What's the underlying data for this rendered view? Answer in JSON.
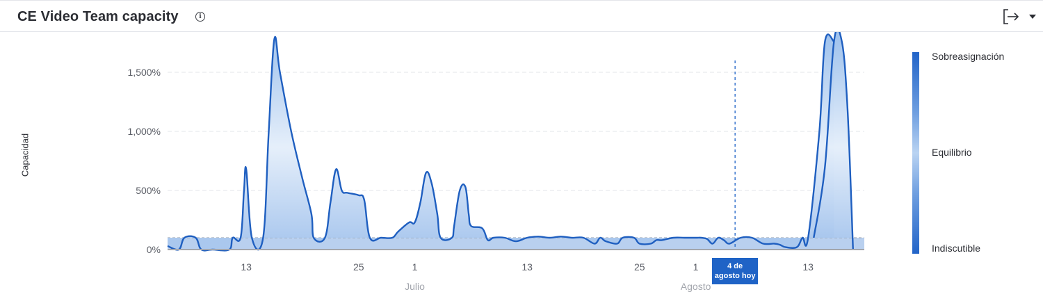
{
  "widget": {
    "title": "CE Video Team capacity",
    "info_icon": "info-circle-icon",
    "export_icon": "export-arrow-icon",
    "dropdown_icon": "caret-down-icon"
  },
  "chart_data": {
    "type": "area",
    "ylabel": "Capacidad",
    "yticks": [
      "0%",
      "500%",
      "1,000%",
      "1,500%"
    ],
    "ylim": [
      0,
      1800
    ],
    "xlim": [
      0,
      62
    ],
    "x_ticks": [
      {
        "x": 7,
        "label": "13"
      },
      {
        "x": 17,
        "label": "25"
      },
      {
        "x": 22,
        "label": "1"
      },
      {
        "x": 32,
        "label": "13"
      },
      {
        "x": 42,
        "label": "25"
      },
      {
        "x": 47,
        "label": "1"
      },
      {
        "x": 57,
        "label": "13"
      }
    ],
    "months": [
      {
        "x": 22,
        "label": "Julio"
      },
      {
        "x": 47,
        "label": "Agosto"
      }
    ],
    "today": {
      "x": 50.5,
      "label_line1": "4 de",
      "label_line2": "agosto hoy"
    },
    "baseline": 100,
    "series": [
      {
        "values": [
          [
            0,
            30
          ],
          [
            1,
            0
          ],
          [
            1.5,
            100
          ],
          [
            2.5,
            100
          ],
          [
            3,
            0
          ],
          [
            4,
            0
          ],
          [
            5.5,
            0
          ],
          [
            5.8,
            100
          ],
          [
            6.5,
            100
          ],
          [
            6.8,
            500
          ],
          [
            7,
            680
          ],
          [
            7.5,
            100
          ],
          [
            8.5,
            100
          ],
          [
            9,
            1000
          ],
          [
            9.5,
            1780
          ],
          [
            10,
            1500
          ],
          [
            11,
            1000
          ],
          [
            12,
            600
          ],
          [
            12.8,
            300
          ],
          [
            13,
            100
          ],
          [
            14,
            100
          ],
          [
            14.5,
            400
          ],
          [
            15,
            680
          ],
          [
            15.5,
            500
          ],
          [
            16,
            480
          ],
          [
            17,
            460
          ],
          [
            17.5,
            420
          ],
          [
            18,
            100
          ],
          [
            19,
            100
          ],
          [
            20,
            100
          ],
          [
            20.5,
            150
          ],
          [
            21.5,
            230
          ],
          [
            22,
            230
          ],
          [
            22.5,
            400
          ],
          [
            23,
            650
          ],
          [
            23.5,
            560
          ],
          [
            24,
            300
          ],
          [
            24.3,
            100
          ],
          [
            25.3,
            100
          ],
          [
            25.5,
            200
          ],
          [
            26,
            500
          ],
          [
            26.5,
            530
          ],
          [
            26.8,
            300
          ],
          [
            27,
            200
          ],
          [
            28,
            180
          ],
          [
            28.5,
            80
          ],
          [
            29,
            100
          ],
          [
            30,
            100
          ],
          [
            31,
            70
          ],
          [
            32,
            100
          ],
          [
            33,
            110
          ],
          [
            34,
            100
          ],
          [
            35,
            110
          ],
          [
            36,
            100
          ],
          [
            37,
            100
          ],
          [
            38,
            50
          ],
          [
            38.5,
            100
          ],
          [
            39,
            70
          ],
          [
            40,
            50
          ],
          [
            40.5,
            100
          ],
          [
            41.5,
            100
          ],
          [
            42,
            50
          ],
          [
            43,
            50
          ],
          [
            43.5,
            80
          ],
          [
            44,
            80
          ],
          [
            45,
            100
          ],
          [
            46,
            100
          ],
          [
            47,
            100
          ],
          [
            47.5,
            100
          ],
          [
            48,
            90
          ],
          [
            48.5,
            50
          ],
          [
            49,
            100
          ],
          [
            49.5,
            80
          ],
          [
            50,
            50
          ],
          [
            51,
            100
          ],
          [
            52,
            100
          ],
          [
            53,
            50
          ],
          [
            54,
            50
          ],
          [
            54.5,
            40
          ],
          [
            55,
            20
          ],
          [
            56,
            20
          ],
          [
            56.5,
            100
          ],
          [
            57,
            100
          ],
          [
            58,
            1000
          ],
          [
            58.5,
            1760
          ],
          [
            59.3,
            1760
          ]
        ]
      },
      {
        "values": [
          [
            57.5,
            100
          ],
          [
            58.5,
            700
          ],
          [
            59.3,
            1760
          ],
          [
            60,
            1760
          ],
          [
            60.5,
            1200
          ],
          [
            61,
            0
          ]
        ]
      }
    ]
  },
  "legend": {
    "top": "Sobreasignación",
    "mid": "Equilibrio",
    "bottom": "Indiscutible"
  }
}
